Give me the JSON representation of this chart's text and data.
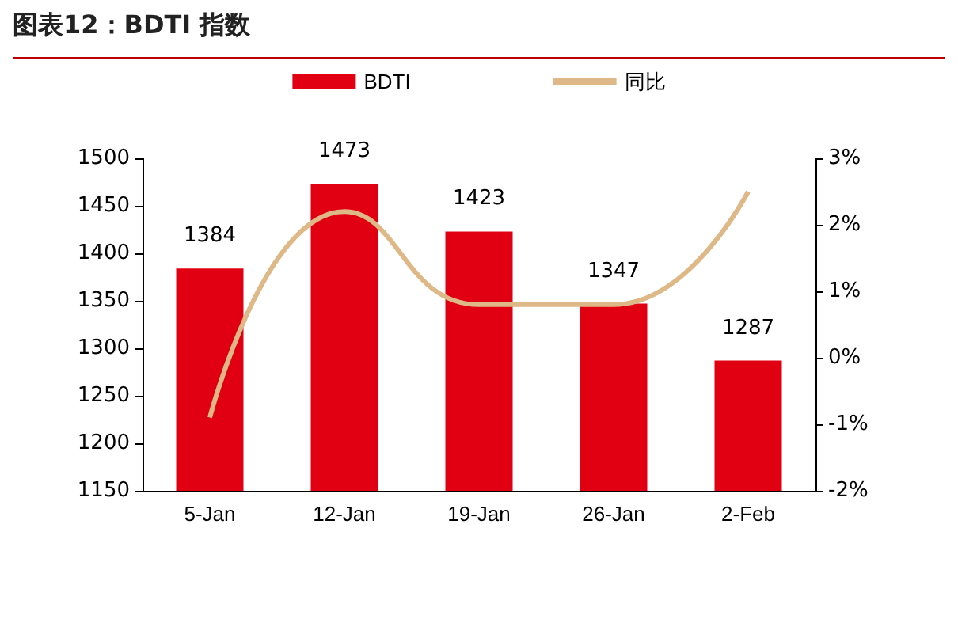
{
  "chart_data": {
    "type": "bar",
    "title": "图表12：BDTI 指数",
    "categories": [
      "5-Jan",
      "12-Jan",
      "19-Jan",
      "26-Jan",
      "2-Feb"
    ],
    "series": [
      {
        "name": "BDTI",
        "color": "#e00012",
        "values": [
          1384,
          1473,
          1423,
          1347,
          1287
        ],
        "value_labels": [
          "1384",
          "1473",
          "1423",
          "1347",
          "1287"
        ]
      },
      {
        "name": "同比",
        "type": "line",
        "axis": "y2",
        "color": "#deb886",
        "values": [
          -0.9,
          2.2,
          0.8,
          0.8,
          2.5
        ]
      }
    ],
    "ylim": [
      1150,
      1500
    ],
    "yticks": [
      1150,
      1200,
      1250,
      1300,
      1350,
      1400,
      1450,
      1500
    ],
    "y2lim": [
      -2,
      3
    ],
    "y2ticks": [
      {
        "value": -2,
        "label": "-2%"
      },
      {
        "value": -1,
        "label": "-1%"
      },
      {
        "value": 0,
        "label": "0%"
      },
      {
        "value": 1,
        "label": "1%"
      },
      {
        "value": 2,
        "label": "2%"
      },
      {
        "value": 3,
        "label": "3%"
      }
    ],
    "legend": "top",
    "marker": "none",
    "line_style": "solid"
  }
}
